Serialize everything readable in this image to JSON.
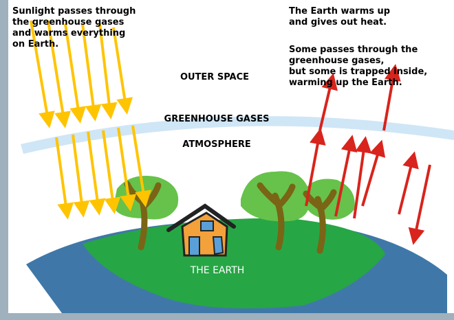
{
  "captions": {
    "sunlight": [
      "Sunlight passes through",
      "the greenhouse gases",
      "and warms everything",
      "on Earth."
    ],
    "warms": [
      "The Earth warms up",
      "and gives out heat."
    ],
    "trapped": [
      "Some passes through the",
      "greenhouse gases,",
      "but some is trapped inside,",
      "warming up the Earth."
    ]
  },
  "labels": {
    "outer_space": "OUTER SPACE",
    "greenhouse_gases": "GREENHOUSE GASES",
    "atmosphere": "ATMOSPHERE",
    "earth": "THE EARTH"
  }
}
